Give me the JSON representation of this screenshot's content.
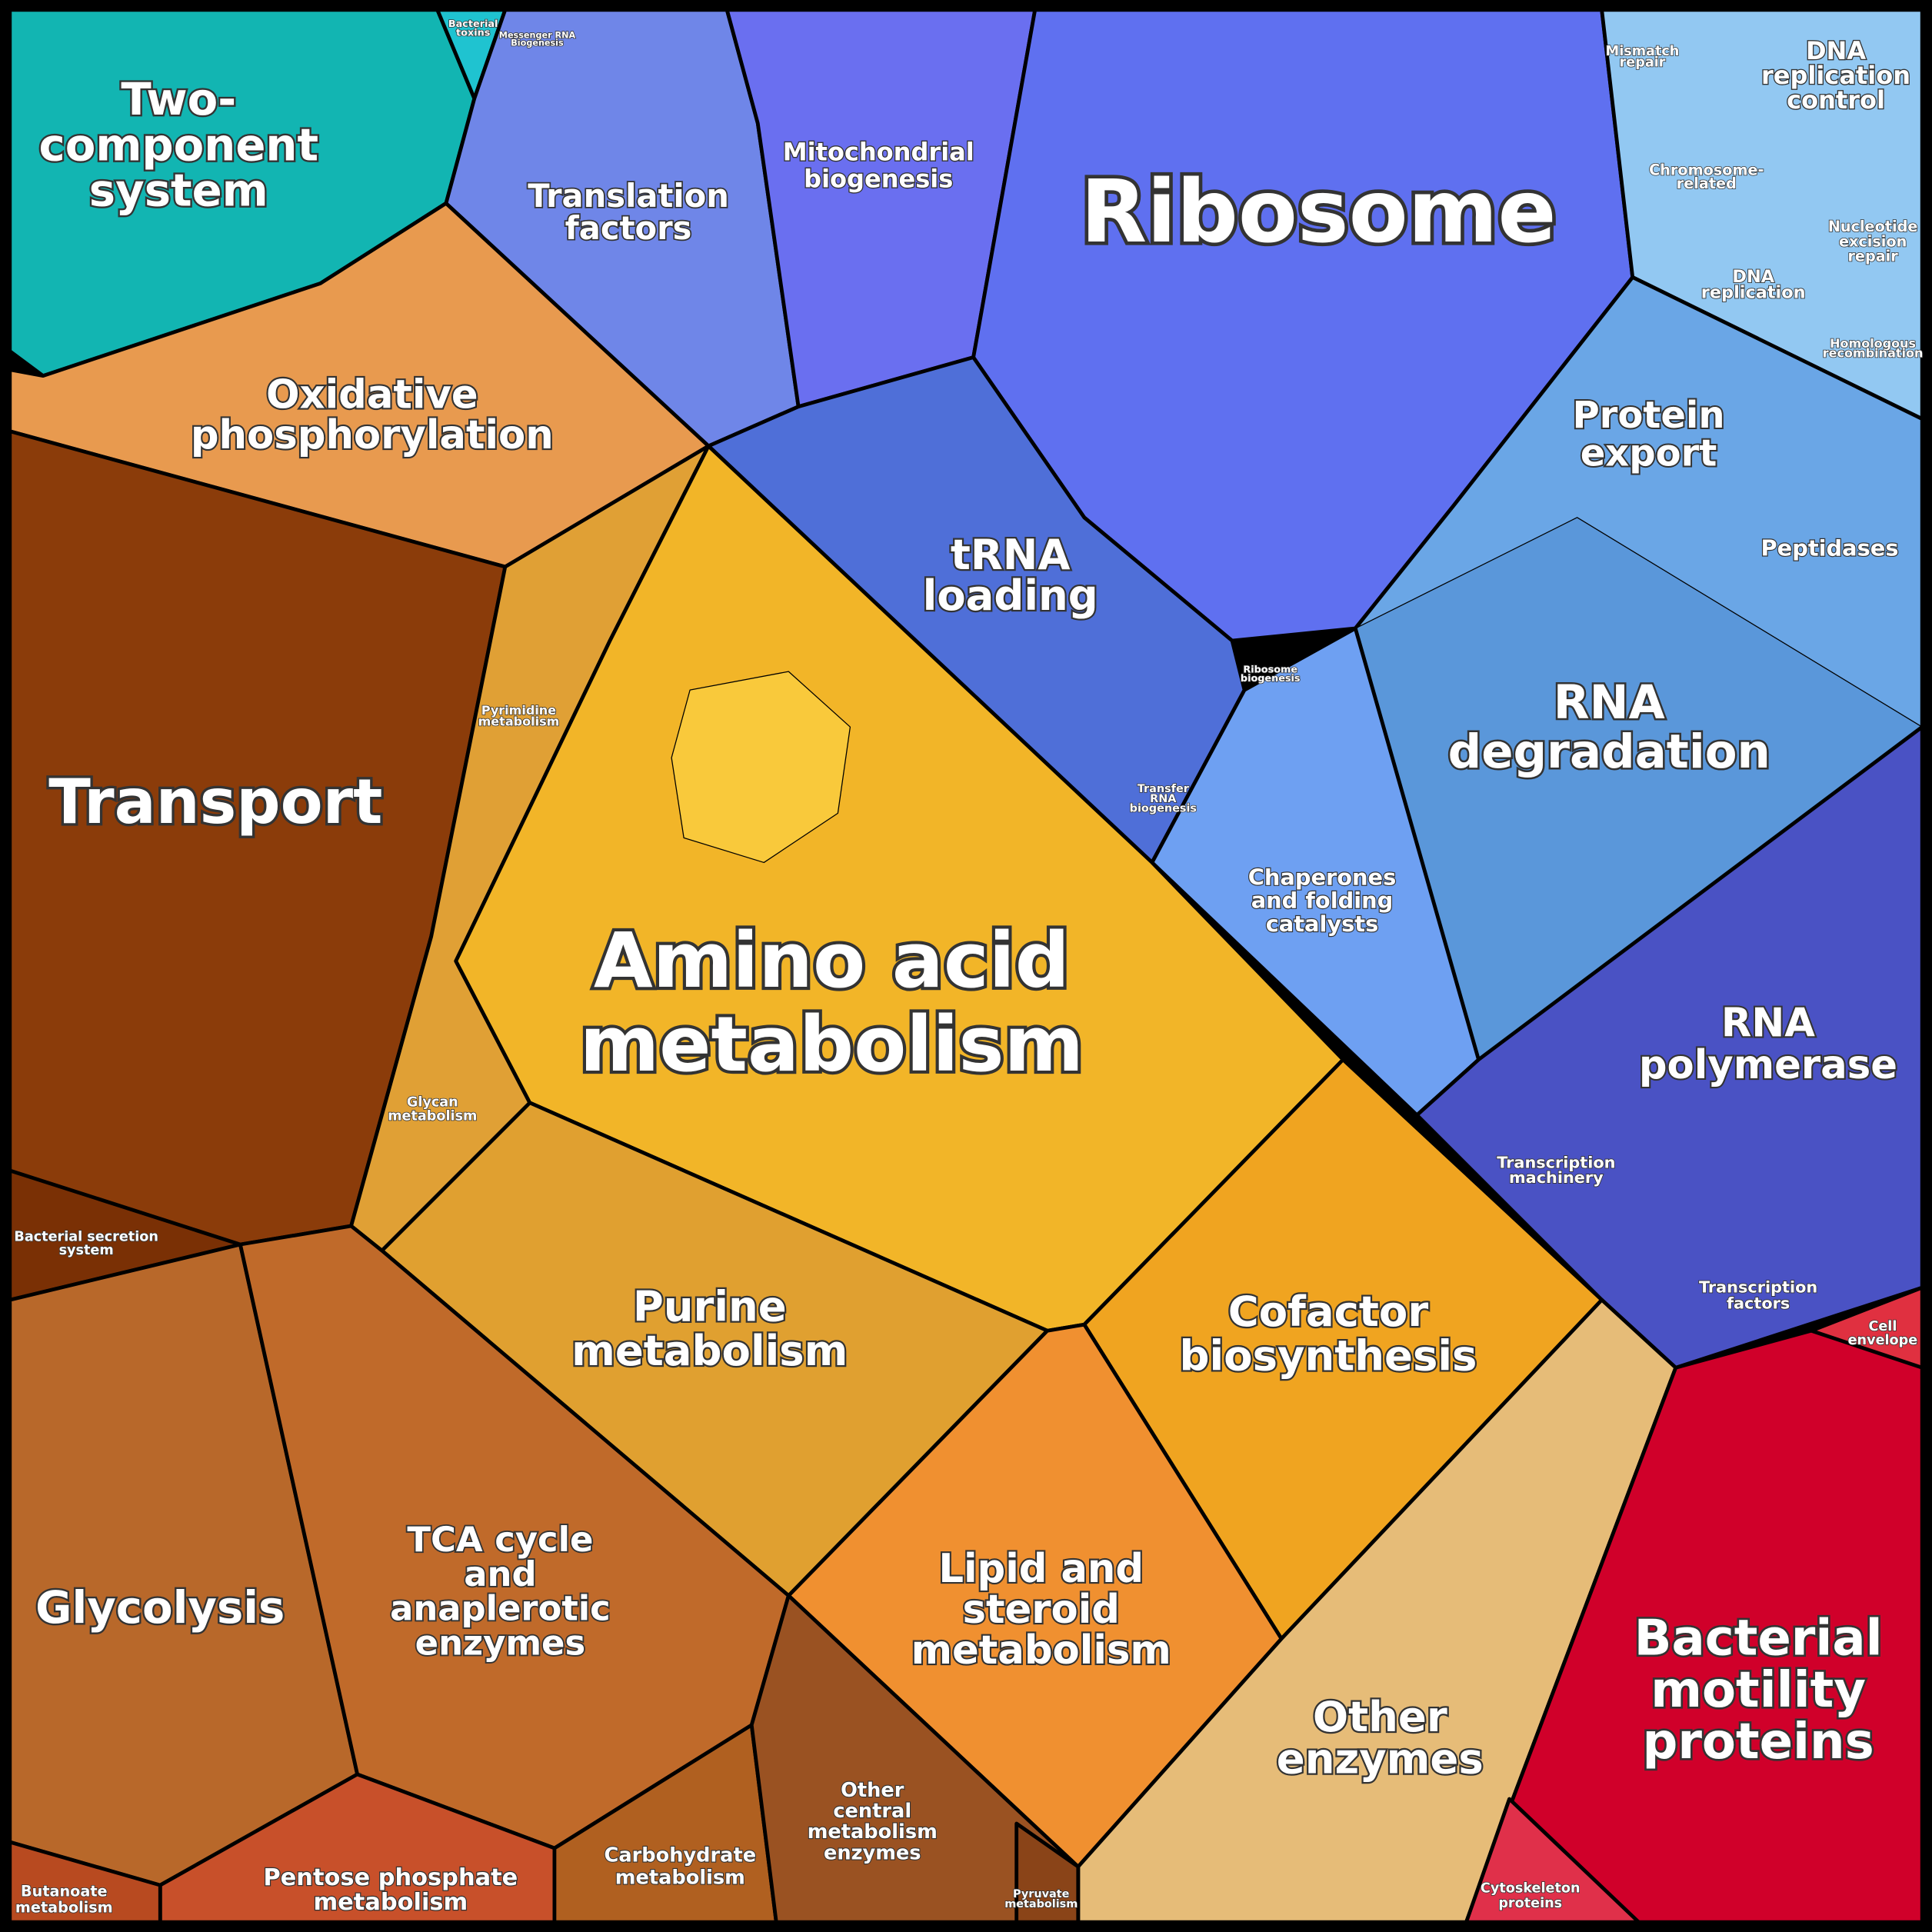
{
  "regions": [
    {
      "label": [
        "Two-",
        "component",
        "system"
      ]
    },
    {
      "label": [
        "Bacterial",
        "toxins"
      ]
    },
    {
      "label": [
        "Messenger RNA",
        "Biogenesis"
      ]
    },
    {
      "label": [
        "Translation",
        "factors"
      ]
    },
    {
      "label": [
        "Mitochondrial",
        "biogenesis"
      ]
    },
    {
      "label": [
        "Ribosome"
      ]
    },
    {
      "label": [
        "Mismatch",
        "repair"
      ]
    },
    {
      "label": [
        "DNA",
        "replication",
        "control"
      ]
    },
    {
      "label": [
        "Chromosome-",
        "related"
      ]
    },
    {
      "label": [
        "Nucleotide",
        "excision",
        "repair"
      ]
    },
    {
      "label": [
        "DNA",
        "replication"
      ]
    },
    {
      "label": [
        "Homologous",
        "recombination"
      ]
    },
    {
      "label": [
        "Oxidative",
        "phosphorylation"
      ]
    },
    {
      "label": [
        "Protein",
        "export"
      ]
    },
    {
      "label": [
        "Peptidases"
      ]
    },
    {
      "label": [
        "tRNA",
        "loading"
      ]
    },
    {
      "label": [
        "Ribosome",
        "biogenesis"
      ]
    },
    {
      "label": [
        "Transfer",
        "RNA",
        "biogenesis"
      ]
    },
    {
      "label": [
        "RNA",
        "degradation"
      ]
    },
    {
      "label": [
        "Pyrimidine",
        "metabolism"
      ]
    },
    {
      "label": [
        "Transport"
      ]
    },
    {
      "label": [
        "Chaperones",
        "and folding",
        "catalysts"
      ]
    },
    {
      "label": [
        "Amino acid",
        "metabolism"
      ]
    },
    {
      "label": [
        "RNA",
        "polymerase"
      ]
    },
    {
      "label": [
        "Glycan",
        "metabolism"
      ]
    },
    {
      "label": [
        "Transcription",
        "machinery"
      ]
    },
    {
      "label": [
        "Bacterial secretion",
        "system"
      ]
    },
    {
      "label": [
        "Transcription",
        "factors"
      ]
    },
    {
      "label": [
        "Purine",
        "metabolism"
      ]
    },
    {
      "label": [
        "Cofactor",
        "biosynthesis"
      ]
    },
    {
      "label": [
        "Cell",
        "envelope"
      ]
    },
    {
      "label": [
        "TCA cycle",
        "and",
        "anaplerotic",
        "enzymes"
      ]
    },
    {
      "label": [
        "Lipid and",
        "steroid",
        "metabolism"
      ]
    },
    {
      "label": [
        "Glycolysis"
      ]
    },
    {
      "label": [
        "Other",
        "enzymes"
      ]
    },
    {
      "label": [
        "Bacterial",
        "motility",
        "proteins"
      ]
    },
    {
      "label": [
        "Other",
        "central",
        "metabolism",
        "enzymes"
      ]
    },
    {
      "label": [
        "Carbohydrate",
        "metabolism"
      ]
    },
    {
      "label": [
        "Pentose phosphate",
        "metabolism"
      ]
    },
    {
      "label": [
        "Butanoate",
        "metabolism"
      ]
    },
    {
      "label": [
        "Pyruvate",
        "metabolism"
      ]
    },
    {
      "label": [
        "Cytoskeleton",
        "proteins"
      ]
    }
  ]
}
